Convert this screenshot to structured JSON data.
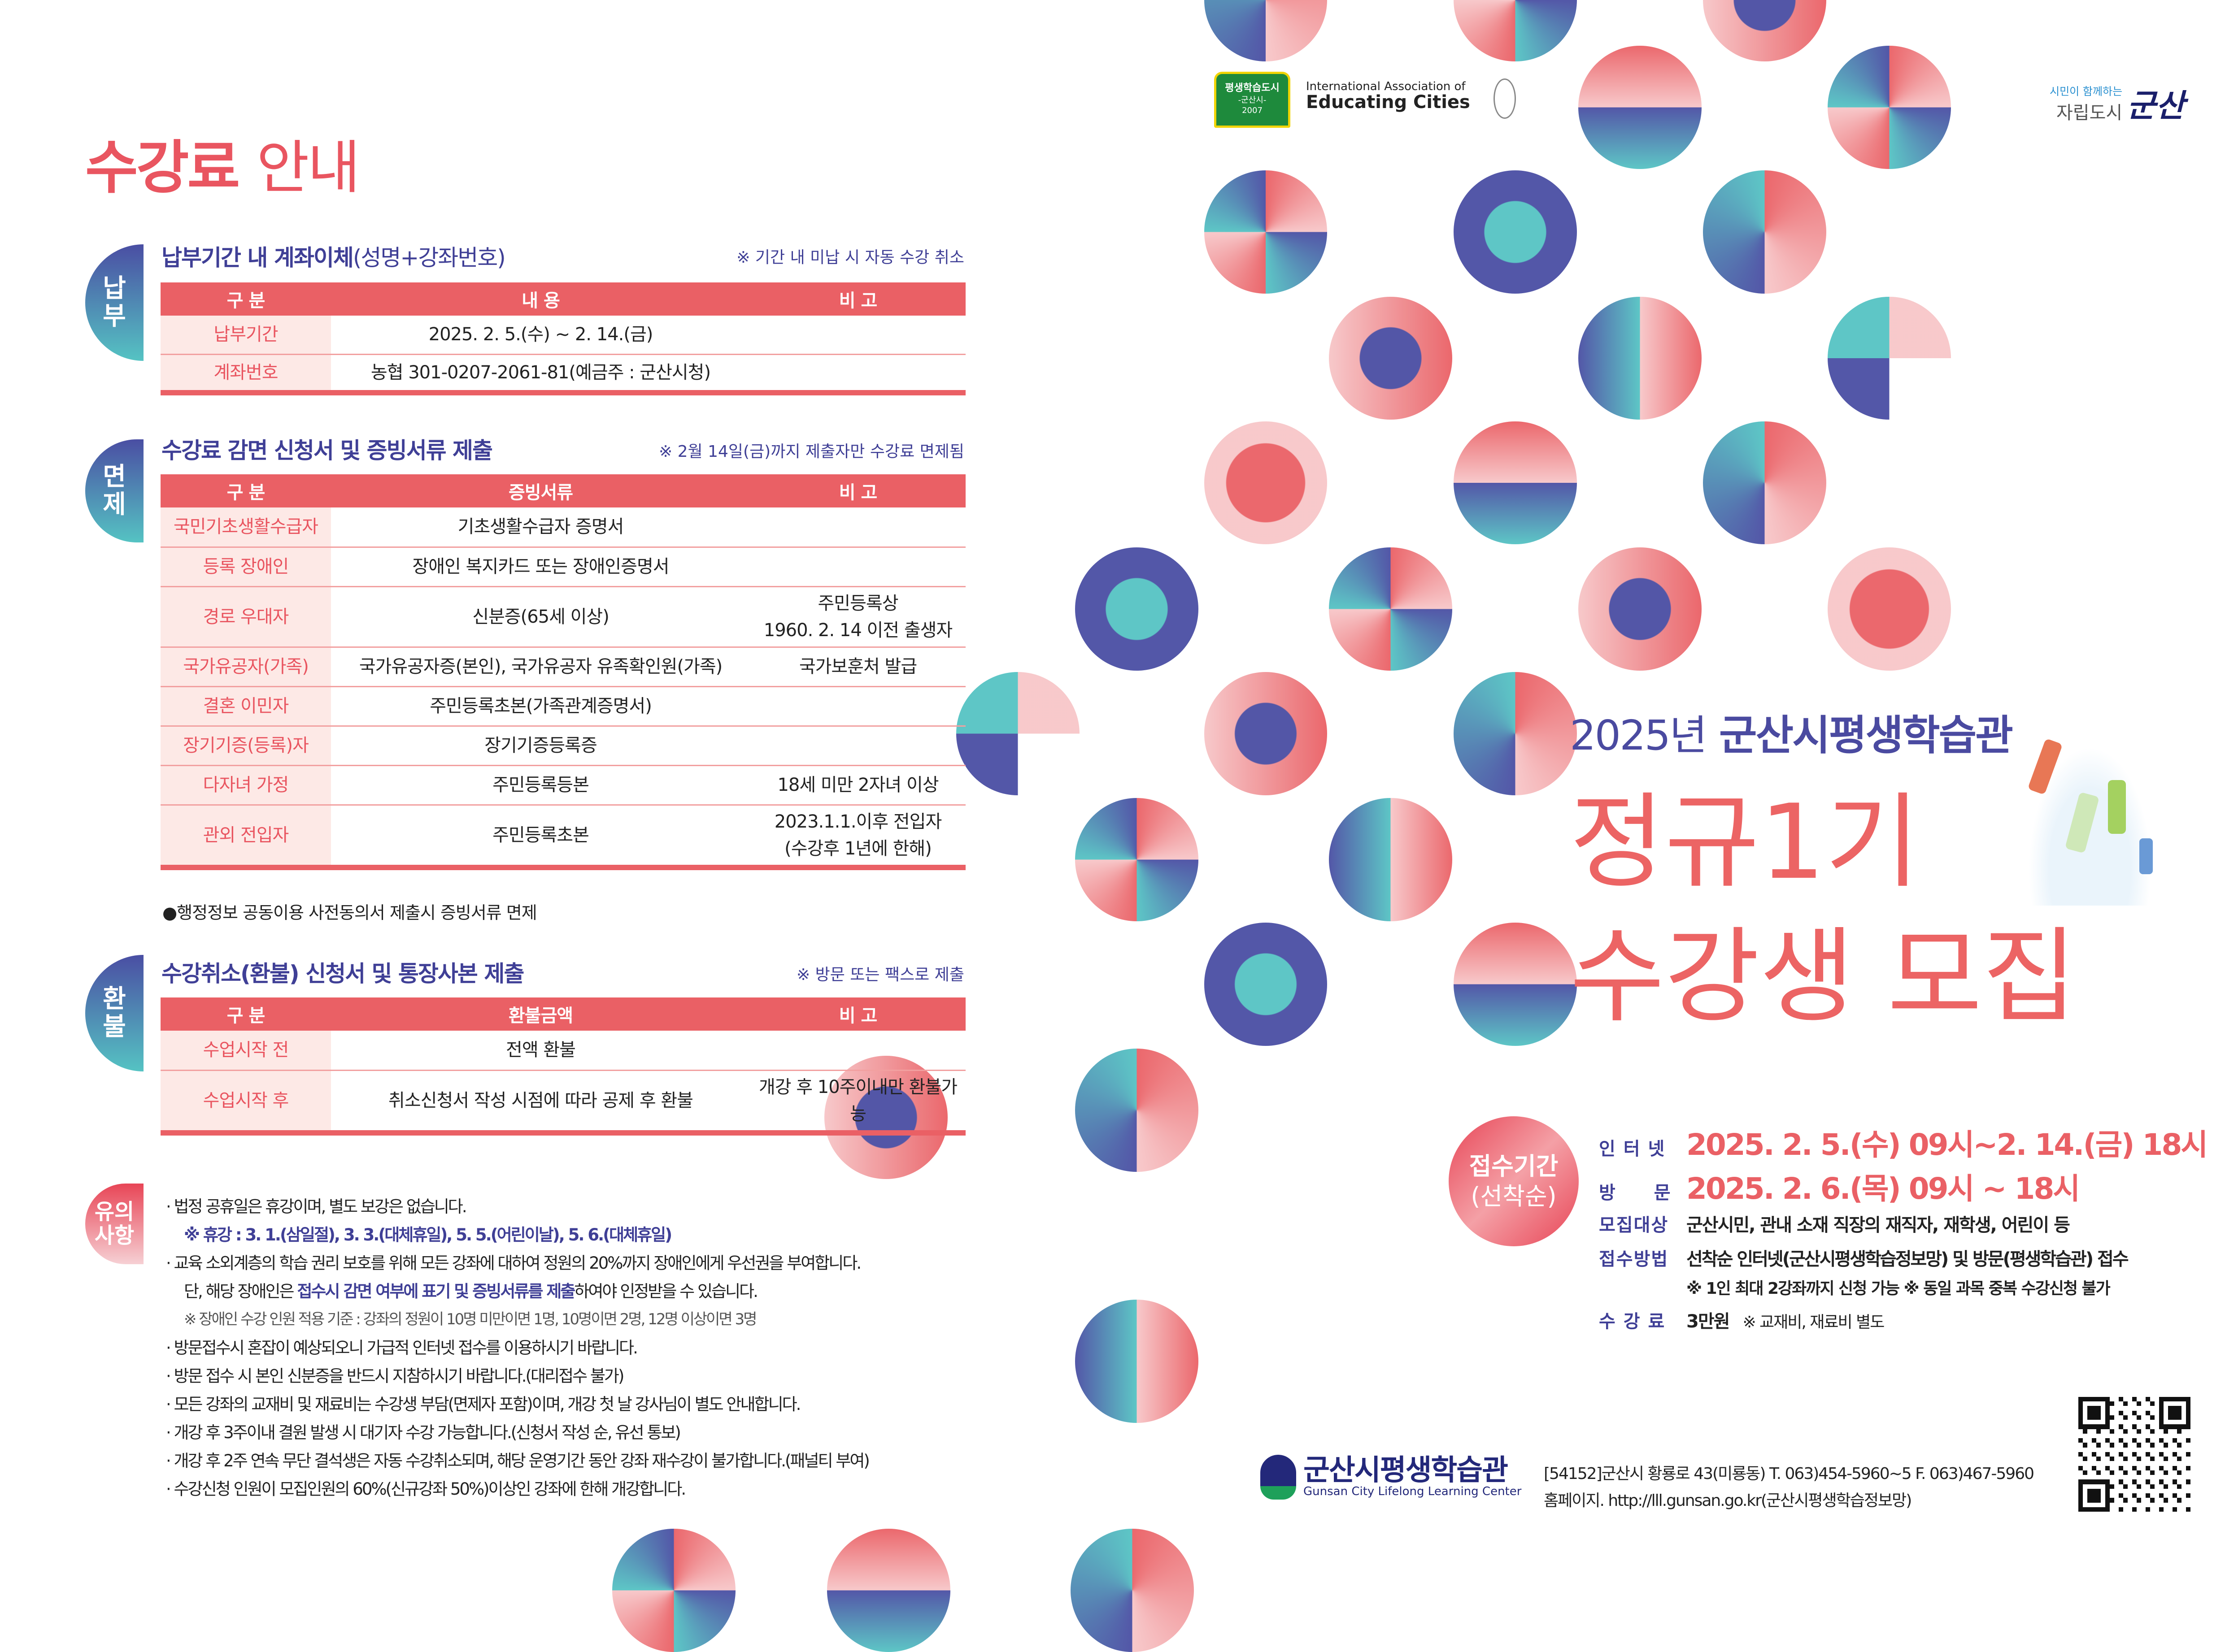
{
  "left": {
    "title_bold": "수강료",
    "title_thin": "안내",
    "payment": {
      "badge": [
        "납",
        "부"
      ],
      "title_bold": "납부기간 내 계좌이체",
      "title_thin": "(성명+강좌번호)",
      "note": "※ 기간 내 미납 시 자동 수강 취소",
      "headers": [
        "구 분",
        "내 용",
        "비 고"
      ],
      "rows": [
        [
          "납부기간",
          "2025. 2. 5.(수) ~ 2. 14.(금)",
          ""
        ],
        [
          "계좌번호",
          "농협 301-0207-2061-81(예금주 : 군산시청)",
          ""
        ]
      ]
    },
    "exemption": {
      "badge": [
        "면",
        "제"
      ],
      "title": "수강료 감면 신청서 및 증빙서류 제출",
      "note": "※ 2월 14일(금)까지 제출자만 수강료 면제됨",
      "headers": [
        "구 분",
        "증빙서류",
        "비 고"
      ],
      "rows": [
        [
          "국민기초생활수급자",
          "기초생활수급자 증명서",
          ""
        ],
        [
          "등록 장애인",
          "장애인 복지카드 또는 장애인증명서",
          ""
        ],
        [
          "경로 우대자",
          "신분증(65세 이상)",
          "주민등록상\n1960. 2. 14 이전 출생자"
        ],
        [
          "국가유공자(가족)",
          "국가유공자증(본인), 국가유공자 유족확인원(가족)",
          "국가보훈처 발급"
        ],
        [
          "결혼 이민자",
          "주민등록초본(가족관계증명서)",
          ""
        ],
        [
          "장기기증(등록)자",
          "장기기증등록증",
          ""
        ],
        [
          "다자녀 가정",
          "주민등록등본",
          "18세 미만 2자녀 이상"
        ],
        [
          "관외 전입자",
          "주민등록초본",
          "2023.1.1.이후 전입자\n(수강후 1년에 한해)"
        ]
      ],
      "footnote": "●행정정보 공동이용 사전동의서 제출시 증빙서류 면제"
    },
    "refund": {
      "badge": [
        "환",
        "불"
      ],
      "title": "수강취소(환불) 신청서 및 통장사본 제출",
      "note": "※ 방문 또는 팩스로 제출",
      "headers": [
        "구 분",
        "환불금액",
        "비 고"
      ],
      "rows": [
        [
          "수업시작 전",
          "전액 환불",
          ""
        ],
        [
          "수업시작 후",
          "취소신청서 작성 시점에 따라 공제 후 환불",
          "개강 후 10주이내만 환불가능"
        ]
      ]
    },
    "notices": {
      "badge": [
        "유의",
        "사항"
      ],
      "items": [
        {
          "text": "· 법정 공휴일은 휴강이며, 별도 보강은 없습니다.",
          "style": ""
        },
        {
          "text": "※ 휴강 : 3. 1.(삼일절), 3. 3.(대체휴일), 5. 5.(어린이날), 5. 6.(대체휴일)",
          "style": "sub blue"
        },
        {
          "text": "· 교육 소외계층의 학습 권리 보호를 위해 모든 강좌에 대하여 정원의 20%까지 장애인에게 우선권을 부여합니다.",
          "style": ""
        },
        {
          "text_pre": "단, 해당 장애인은 ",
          "text_em": "접수시 감면 여부에 표기 및 증빙서류를 제출",
          "text_post": "하여야 인정받을 수 있습니다.",
          "style": "sub"
        },
        {
          "text": "※ 장애인 수강 인원 적용 기준 : 강좌의 정원이 10명 미만이면 1명, 10명이면 2명, 12명 이상이면 3명",
          "style": "sub gray"
        },
        {
          "text": "· 방문접수시 혼잡이 예상되오니 가급적 인터넷 접수를 이용하시기 바랍니다.",
          "style": ""
        },
        {
          "text": "· 방문 접수 시 본인 신분증을 반드시 지참하시기 바랍니다.(대리접수 불가)",
          "style": ""
        },
        {
          "text": "· 모든 강좌의 교재비 및 재료비는 수강생 부담(면제자 포함)이며, 개강 첫 날 강사님이 별도 안내합니다.",
          "style": ""
        },
        {
          "text": "· 개강 후 3주이내 결원 발생 시 대기자 수강 가능합니다.(신청서 작성 순, 유선 통보)",
          "style": ""
        },
        {
          "text": "· 개강 후 2주 연속 무단 결석생은 자동 수강취소되며, 해당 운영기간 동안 강좌 재수강이 불가합니다.(패널티 부여)",
          "style": ""
        },
        {
          "text": "· 수강신청 인원이 모집인원의 60%(신규강좌 50%)이상인 강좌에 한해 개강합니다.",
          "style": ""
        }
      ]
    }
  },
  "right": {
    "logos": {
      "lifelong_city": "평생학습도시 -군산시- 2007 교육인적자원부",
      "iaec_line1": "International Association of",
      "iaec_line2": "Educating Cities",
      "slogan_small": "시민이 함께하는",
      "slogan_main": "자립도시",
      "slogan_city": "군산"
    },
    "headline": {
      "year": "2025년",
      "org": "군산시평생학습관",
      "line2": "정규1기",
      "line3": "수강생 모집"
    },
    "registration": {
      "badge_line1": "접수기간",
      "badge_line2": "(선착순)",
      "internet_label": "인 터 넷",
      "internet_value": "2025. 2. 5.(수) 09시~2. 14.(금) 18시",
      "visit_label": "방　　문",
      "visit_value": "2025. 2. 6.(목) 09시 ~ 18시",
      "target_label": "모집대상",
      "target_value": "군산시민, 관내 소재 직장의 재직자, 재학생, 어린이 등",
      "method_label": "접수방법",
      "method_value": "선착순 인터넷(군산시평생학습정보망) 및 방문(평생학습관) 접수",
      "method_note": "※ 1인 최대 2강좌까지 신청 가능 ※ 동일 과목 중복 수강신청 불가",
      "fee_label": "수 강 료",
      "fee_value": "3만원",
      "fee_note": "※ 교재비, 재료비 별도"
    },
    "footer": {
      "org_kr": "군산시평생학습관",
      "org_en": "Gunsan City Lifelong Learning Center",
      "address": "[54152]군산시 황룡로 43(미룡동) T. 063)454-5960~5 F. 063)467-5960",
      "homepage": "홈페이지. http://lll.gunsan.go.kr(군산시평생학습정보망)"
    }
  },
  "colors": {
    "accent_red": "#ea6065",
    "navy": "#3f3f96",
    "teal": "#55c3c3",
    "light_pink": "#fde9e6"
  }
}
